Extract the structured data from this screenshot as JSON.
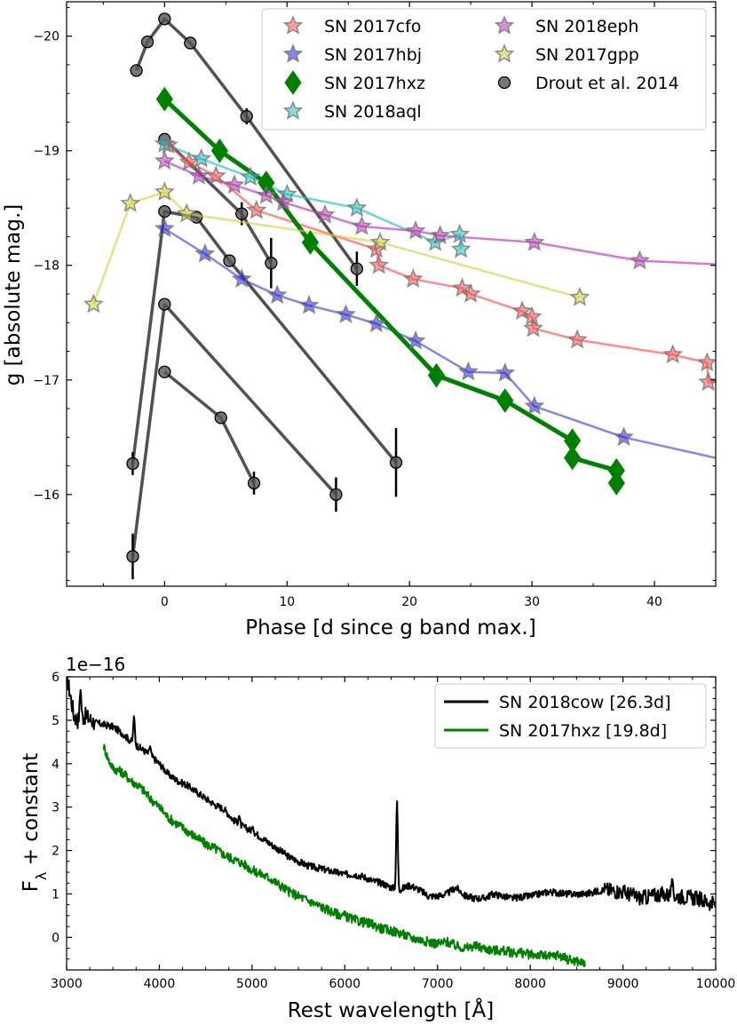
{
  "chart_data": [
    {
      "type": "line",
      "xlabel": "Phase [d since g band max.]",
      "ylabel": "g [absolute mag.]",
      "xlim": [
        -8,
        45
      ],
      "ylim": [
        -15.2,
        -20.3
      ],
      "y_inverted": true,
      "xticks": [
        0,
        10,
        20,
        30,
        40
      ],
      "xtick_labels": [
        "0",
        "10",
        "20",
        "30",
        "40"
      ],
      "yticks": [
        -16,
        -17,
        -18,
        -19,
        -20
      ],
      "ytick_labels": [
        "−16",
        "−17",
        "−18",
        "−19",
        "−20"
      ],
      "legend_position": "top-right",
      "series": [
        {
          "name": "SN 2017cfo",
          "color": "#ff4d4d",
          "marker": "star",
          "linewidth": 2.5,
          "alpha": 0.65,
          "x": [
            0.3,
            2.0,
            4.2,
            7.5,
            17.3,
            17.5,
            20.3,
            24.3,
            25.0,
            29.2,
            30.0,
            30.1,
            33.7,
            41.5,
            44.3,
            44.4
          ],
          "y": [
            -19.05,
            -18.9,
            -18.78,
            -18.48,
            -18.14,
            -18.0,
            -17.88,
            -17.8,
            -17.75,
            -17.6,
            -17.55,
            -17.45,
            -17.35,
            -17.22,
            -17.15,
            -16.98
          ],
          "line_extend": [
            45.0,
            -16.98
          ]
        },
        {
          "name": "SN 2017hbj",
          "color": "#2222dd",
          "marker": "star",
          "linewidth": 2.5,
          "alpha": 0.55,
          "x": [
            0,
            3.3,
            6.3,
            9.2,
            11.8,
            14.8,
            17.3,
            20.5,
            24.8,
            27.8,
            30.2,
            37.5
          ],
          "y": [
            -18.32,
            -18.1,
            -17.88,
            -17.74,
            -17.65,
            -17.57,
            -17.49,
            -17.34,
            -17.07,
            -17.06,
            -16.77,
            -16.5
          ],
          "line_extend": [
            45.0,
            -16.32
          ]
        },
        {
          "name": "SN 2017hxz",
          "color": "#008000",
          "marker": "diamond",
          "linewidth": 5,
          "alpha": 1.0,
          "x": [
            0,
            4.5,
            8.3,
            11.9,
            22.2,
            27.8,
            33.3,
            33.3,
            36.9,
            36.9
          ],
          "y": [
            -19.45,
            -19.0,
            -18.72,
            -18.2,
            -17.04,
            -16.82,
            -16.47,
            -16.32,
            -16.21,
            -16.1
          ]
        },
        {
          "name": "SN 2018aql",
          "color": "#20c0c0",
          "marker": "star",
          "linewidth": 2.5,
          "alpha": 0.65,
          "x": [
            0,
            3.0,
            7.0,
            10.0,
            15.7,
            22.1,
            24.1,
            24.2
          ],
          "y": [
            -19.06,
            -18.93,
            -18.77,
            -18.62,
            -18.5,
            -18.2,
            -18.27,
            -18.14
          ]
        },
        {
          "name": "SN 2018eph",
          "color": "#c030c0",
          "marker": "star",
          "linewidth": 2.5,
          "alpha": 0.65,
          "x": [
            0,
            2.8,
            5.7,
            8.3,
            9.7,
            13.1,
            16.1,
            20.5,
            22.5,
            30.2,
            38.8
          ],
          "y": [
            -18.91,
            -18.78,
            -18.7,
            -18.61,
            -18.55,
            -18.44,
            -18.34,
            -18.3,
            -18.26,
            -18.2,
            -18.04
          ],
          "line_extend": [
            45.0,
            -18.01
          ]
        },
        {
          "name": "SN 2017gpp",
          "color": "#d0d030",
          "marker": "star",
          "linewidth": 2.5,
          "alpha": 0.6,
          "x": [
            -5.8,
            -2.8,
            0,
            1.8,
            17.6,
            33.9
          ],
          "y": [
            -17.66,
            -18.54,
            -18.64,
            -18.45,
            -18.2,
            -17.72
          ]
        }
      ],
      "drout_et_al_2014": {
        "name": "Drout et al. 2014",
        "color": "#333333",
        "alpha": 0.85,
        "marker": "circle",
        "curves": [
          {
            "x": [
              -2.3,
              -1.4,
              0,
              2.1,
              6.7,
              15.7
            ],
            "y": [
              -19.7,
              -19.95,
              -20.15,
              -19.94,
              -19.3,
              -17.97
            ]
          },
          {
            "x": [
              0,
              6.3,
              8.7
            ],
            "y": [
              -19.1,
              -18.45,
              -18.02
            ]
          },
          {
            "x": [
              -2.6,
              0,
              2.6,
              5.3,
              18.9
            ],
            "y": [
              -16.27,
              -18.47,
              -18.42,
              -18.04,
              -16.28
            ]
          },
          {
            "x": [
              -2.6,
              0,
              14.0
            ],
            "y": [
              -15.46,
              -17.66,
              -16.0
            ]
          },
          {
            "x": [
              0,
              4.6,
              7.3
            ],
            "y": [
              -17.07,
              -16.67,
              -16.1
            ]
          }
        ],
        "error_bars": [
          {
            "x": 6.7,
            "y": -19.3,
            "err": 0.07
          },
          {
            "x": 15.7,
            "y": -17.97,
            "err": 0.15
          },
          {
            "x": 6.3,
            "y": -18.45,
            "err": 0.1
          },
          {
            "x": 8.7,
            "y": -18.02,
            "err": 0.22
          },
          {
            "x": 18.9,
            "y": -16.28,
            "err": 0.3
          },
          {
            "x": 14.0,
            "y": -16.0,
            "err": 0.15
          },
          {
            "x": 7.3,
            "y": -16.1,
            "err": 0.1
          },
          {
            "x": -2.6,
            "y": -16.27,
            "err": 0.1
          },
          {
            "x": -2.6,
            "y": -15.46,
            "err": 0.2
          }
        ]
      },
      "legend": [
        {
          "label": "SN 2017cfo",
          "marker": "star",
          "color": "#ff4d4d"
        },
        {
          "label": "SN 2017hbj",
          "marker": "star",
          "color": "#2222dd"
        },
        {
          "label": "SN 2017hxz",
          "marker": "diamond",
          "color": "#008000"
        },
        {
          "label": "SN 2018aql",
          "marker": "star",
          "color": "#20c0c0"
        },
        {
          "label": "SN 2018eph",
          "marker": "star",
          "color": "#c030c0"
        },
        {
          "label": "SN 2017gpp",
          "marker": "star",
          "color": "#d0d030"
        },
        {
          "label": "Drout et al. 2014",
          "marker": "circle",
          "color": "#333333"
        }
      ]
    },
    {
      "type": "line",
      "xlabel": "Rest wavelength [Å]",
      "ylabel": "F",
      "ylabel_subscript": "λ",
      "ylabel_suffix": " + constant",
      "offset_label": "1e−16",
      "xlim": [
        3000,
        10000
      ],
      "ylim": [
        -0.75,
        6
      ],
      "xticks": [
        3000,
        4000,
        5000,
        6000,
        7000,
        8000,
        9000,
        10000
      ],
      "xtick_labels": [
        "3000",
        "4000",
        "5000",
        "6000",
        "7000",
        "8000",
        "9000",
        "10000"
      ],
      "yticks": [
        0,
        1,
        2,
        3,
        4,
        5,
        6
      ],
      "ytick_labels": [
        "0",
        "1",
        "2",
        "3",
        "4",
        "5",
        "6"
      ],
      "legend_position": "top-right",
      "series": [
        {
          "name": "SN 2018cow [26.3d]",
          "color": "#000000",
          "x": [
            3000,
            3040,
            3080,
            3120,
            3200,
            3300,
            3400,
            3500,
            3600,
            3700,
            3800,
            3900,
            4000,
            4100,
            4200,
            4300,
            4400,
            4500,
            4600,
            4700,
            4800,
            4900,
            5000,
            5100,
            5200,
            5300,
            5400,
            5500,
            5600,
            5700,
            5800,
            5900,
            6000,
            6100,
            6200,
            6300,
            6400,
            6500,
            6600,
            6700,
            6800,
            6900,
            7000,
            7100,
            7200,
            7300,
            7400,
            7500,
            7600,
            7700,
            7800,
            8000,
            8200,
            8400,
            8600,
            8800,
            9000,
            9200,
            9400,
            9600,
            9800,
            10000
          ],
          "y": [
            6.0,
            5.6,
            5.1,
            5.0,
            5.1,
            4.95,
            4.9,
            4.85,
            4.7,
            4.5,
            4.35,
            4.2,
            4.0,
            3.75,
            3.6,
            3.5,
            3.35,
            3.2,
            3.05,
            2.95,
            2.7,
            2.55,
            2.45,
            2.3,
            2.15,
            2.0,
            1.85,
            1.75,
            1.65,
            1.6,
            1.55,
            1.5,
            1.45,
            1.45,
            1.4,
            1.3,
            1.25,
            1.15,
            1.1,
            1.2,
            1.1,
            0.95,
            0.95,
            1.0,
            1.15,
            0.95,
            0.9,
            0.9,
            1.0,
            0.95,
            0.9,
            0.95,
            1.05,
            1.0,
            1.0,
            1.1,
            1.05,
            0.9,
            1.0,
            0.95,
            0.9,
            0.75
          ],
          "emission_lines": [
            {
              "x": 3150,
              "peak": 5.7
            },
            {
              "x": 3727,
              "peak": 5.1
            },
            {
              "x": 3900,
              "peak": 4.4
            },
            {
              "x": 4861,
              "peak": 2.8
            },
            {
              "x": 5007,
              "peak": 2.55
            },
            {
              "x": 6563,
              "peak": 3.15
            },
            {
              "x": 9530,
              "peak": 1.35
            }
          ]
        },
        {
          "name": "SN 2017hxz [19.8d]",
          "color": "#008000",
          "x": [
            3400,
            3450,
            3500,
            3600,
            3700,
            3800,
            3900,
            4000,
            4100,
            4200,
            4300,
            4400,
            4500,
            4600,
            4700,
            4800,
            4900,
            5000,
            5100,
            5200,
            5300,
            5400,
            5500,
            5600,
            5700,
            5800,
            5900,
            6000,
            6100,
            6200,
            6300,
            6400,
            6500,
            6600,
            6700,
            6800,
            6900,
            7000,
            7100,
            7200,
            7300,
            7400,
            7500,
            7600,
            7700,
            7800,
            7900,
            8000,
            8100,
            8200,
            8300,
            8400,
            8500,
            8600
          ],
          "y": [
            4.4,
            4.1,
            3.9,
            3.8,
            3.6,
            3.45,
            3.2,
            3.0,
            2.75,
            2.6,
            2.45,
            2.3,
            2.15,
            2.05,
            1.9,
            1.8,
            1.7,
            1.55,
            1.45,
            1.35,
            1.2,
            1.05,
            0.95,
            0.85,
            0.75,
            0.65,
            0.55,
            0.5,
            0.4,
            0.35,
            0.3,
            0.2,
            0.15,
            0.1,
            0.0,
            -0.05,
            -0.1,
            -0.15,
            -0.1,
            -0.2,
            -0.25,
            -0.2,
            -0.25,
            -0.3,
            -0.3,
            -0.35,
            -0.35,
            -0.4,
            -0.4,
            -0.45,
            -0.4,
            -0.5,
            -0.55,
            -0.6
          ]
        }
      ],
      "legend": [
        {
          "label": "SN 2018cow [26.3d]",
          "color": "#000000"
        },
        {
          "label": "SN 2017hxz [19.8d]",
          "color": "#008000"
        }
      ]
    }
  ]
}
